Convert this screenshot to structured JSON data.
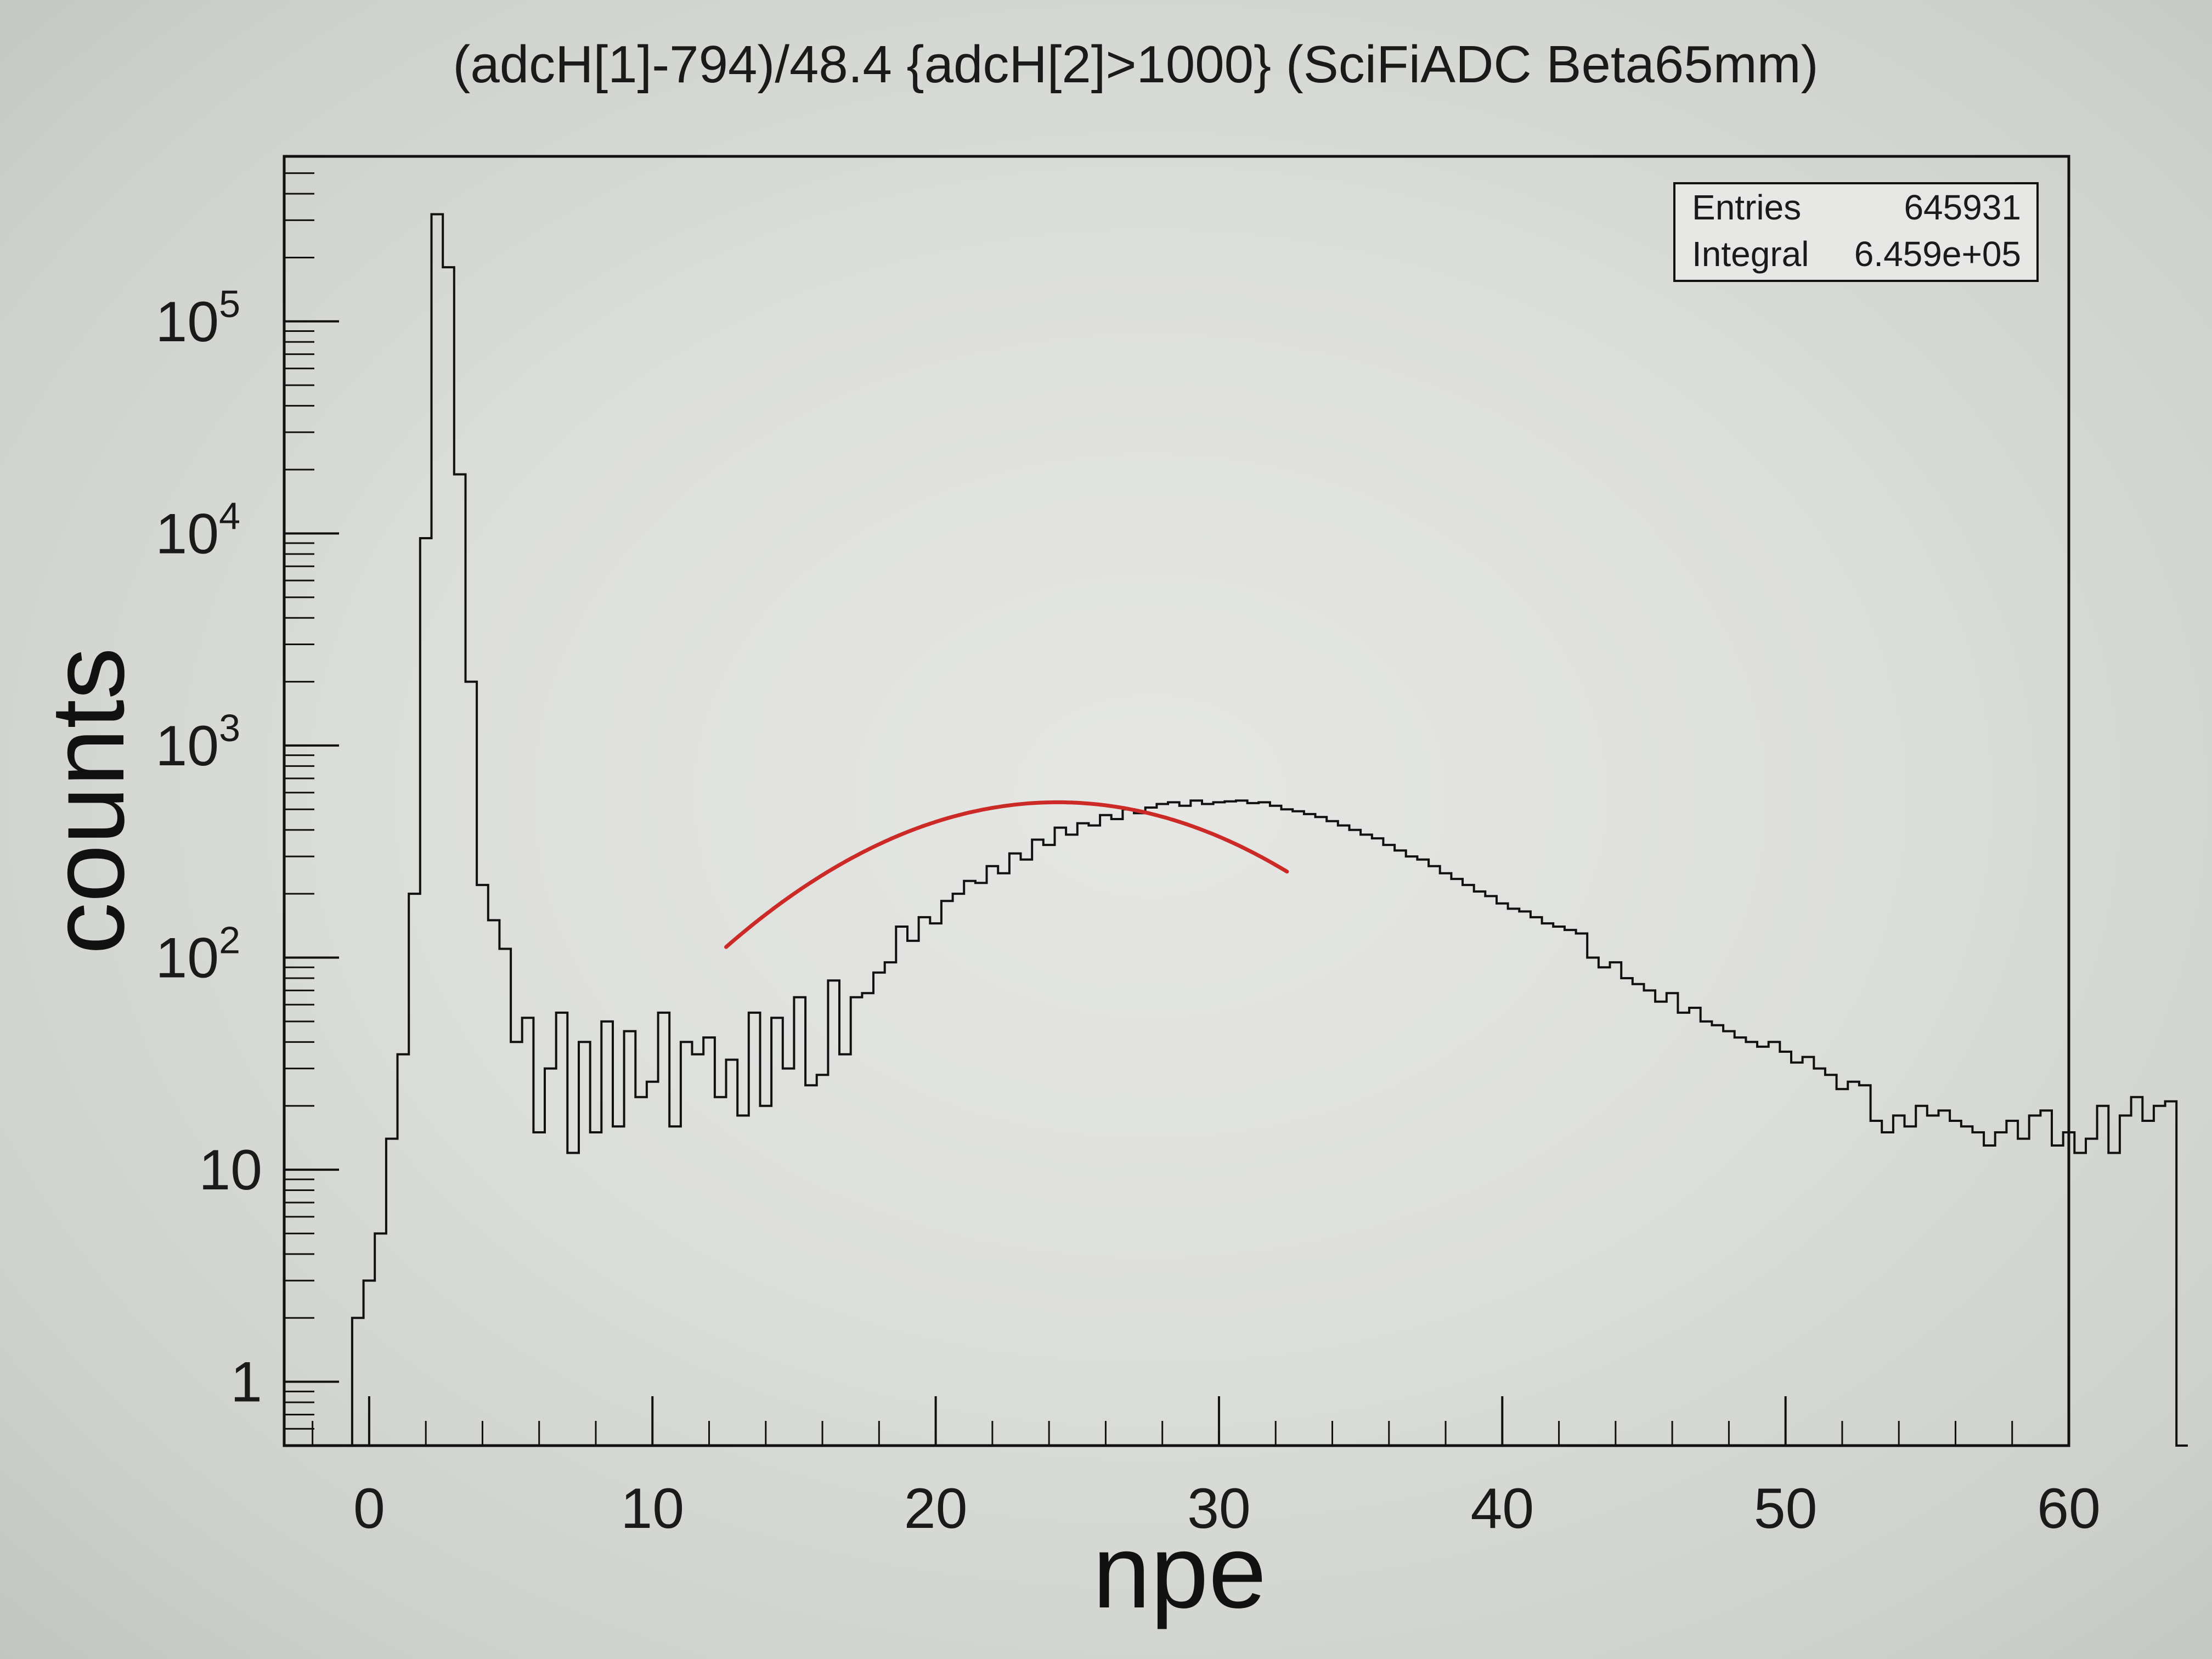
{
  "chart_data": {
    "type": "histogram",
    "title": "(adcH[1]-794)/48.4 {adcH[2]>1000} (SciFiADC Beta65mm)",
    "xlabel": "npe",
    "ylabel": "counts",
    "xlim": [
      -3,
      60
    ],
    "ylim": [
      0.5,
      600000
    ],
    "y_scale": "log",
    "x_ticks": [
      "0",
      "10",
      "20",
      "30",
      "40",
      "50",
      "60"
    ],
    "x_tick_values": [
      0,
      10,
      20,
      30,
      40,
      50,
      60
    ],
    "y_ticks": [
      "1",
      "10",
      "10",
      "10",
      "10",
      "10"
    ],
    "y_tick_exponents": [
      "",
      "",
      "2",
      "3",
      "4",
      "5"
    ],
    "y_tick_values": [
      1,
      10,
      100,
      1000,
      10000,
      100000
    ],
    "grid": false,
    "bin_width": 0.4,
    "bin_start": -3.0,
    "bin_counts": [
      0,
      0,
      0,
      0,
      0,
      0,
      2,
      3,
      5,
      14,
      35,
      200,
      9500,
      320000,
      180000,
      19000,
      2000,
      220,
      150,
      110,
      40,
      52,
      15,
      30,
      55,
      12,
      40,
      15,
      50,
      16,
      45,
      22,
      26,
      55,
      16,
      40,
      35,
      42,
      22,
      33,
      18,
      55,
      20,
      52,
      30,
      65,
      25,
      28,
      78,
      35,
      65,
      68,
      85,
      95,
      140,
      120,
      155,
      145,
      185,
      200,
      230,
      225,
      270,
      250,
      310,
      290,
      360,
      340,
      410,
      380,
      430,
      420,
      470,
      450,
      500,
      480,
      510,
      530,
      540,
      520,
      550,
      530,
      540,
      545,
      550,
      535,
      540,
      520,
      500,
      490,
      475,
      460,
      440,
      420,
      400,
      380,
      365,
      340,
      320,
      300,
      290,
      270,
      250,
      235,
      220,
      205,
      195,
      180,
      170,
      165,
      155,
      145,
      140,
      135,
      130,
      100,
      90,
      95,
      80,
      75,
      70,
      62,
      68,
      55,
      58,
      50,
      48,
      45,
      42,
      40,
      38,
      40,
      36,
      32,
      34,
      30,
      28,
      24,
      26,
      25,
      17,
      15,
      18,
      16,
      20,
      18,
      19,
      17,
      16,
      15,
      13,
      15,
      17,
      14,
      18,
      19,
      13,
      15,
      12,
      14,
      20,
      12,
      18,
      22,
      17,
      20,
      21,
      0
    ]
  },
  "fit": {
    "color": "#cc2a26",
    "x_range": [
      12.6,
      32.4
    ],
    "peak_x": 24.3,
    "peak_counts": 540,
    "sigma": 6.6
  },
  "stats": {
    "entries_label": "Entries",
    "entries_value": "645931",
    "integral_label": "Integral",
    "integral_value": "6.459e+05"
  }
}
